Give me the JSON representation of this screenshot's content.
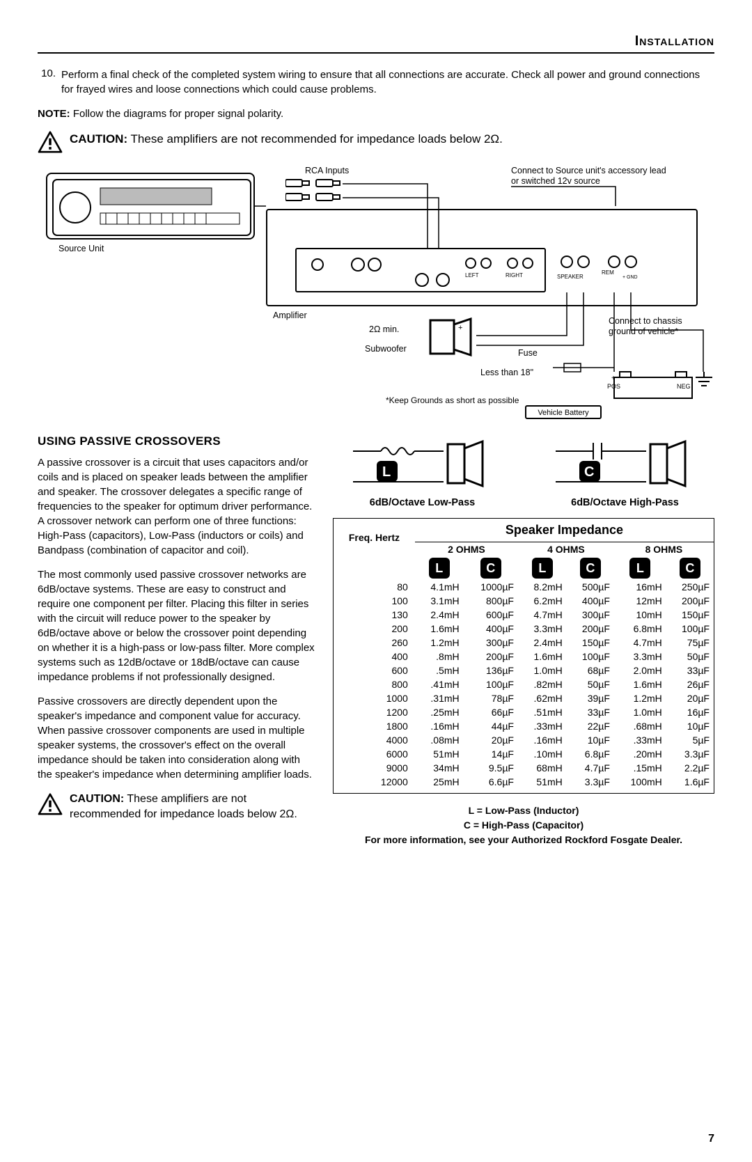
{
  "page": {
    "header": "Installation",
    "number": "7"
  },
  "step10": {
    "num": "10.",
    "text": "Perform a final check of the completed system wiring to ensure that all connections are accurate. Check all power and ground connections for frayed wires and loose connections which could cause problems."
  },
  "note": {
    "label": "NOTE:",
    "text": " Follow the diagrams for proper signal polarity."
  },
  "caution1": {
    "label": "CAUTION:",
    "text": " These amplifiers are not recommended for impedance loads below 2Ω."
  },
  "section": {
    "title": "USING PASSIVE CROSSOVERS",
    "p1": "A passive crossover is a circuit that uses capacitors and/or coils and is placed on speaker leads between the amplifier and speaker. The crossover delegates a specific range of frequencies to the speaker for optimum driver performance. A crossover network can perform one of three functions: High-Pass (capacitors), Low-Pass (inductors or coils) and Bandpass (combination of capacitor and coil).",
    "p2": "The most commonly used passive crossover networks are 6dB/octave systems. These are easy to construct and require one component per filter. Placing this filter in series with the circuit will reduce power to the speaker by 6dB/octave above or below the crossover point depending on whether it is a high-pass or low-pass filter. More complex systems such as 12dB/octave or 18dB/octave can cause impedance problems if not professionally designed.",
    "p3": "Passive crossovers are directly dependent upon the speaker's impedance and component value for accuracy. When passive crossover components are used in multiple speaker systems, the crossover's effect on the overall impedance should be taken into consideration along with the speaker's impedance when determining amplifier loads."
  },
  "caution2": {
    "label": "CAUTION:",
    "text": " These amplifiers are not recommended for impedance loads below 2Ω."
  },
  "wiring": {
    "rca": "RCA Inputs",
    "source": "Source Unit",
    "amp": "Amplifier",
    "sub_imp": "2Ω min.",
    "sub": "Subwoofer",
    "connect_src": "Connect to Source unit's accessory lead or switched 12v source",
    "connect_gnd": "Connect to chassis ground of vehicle*",
    "fuse": "Fuse",
    "less18": "Less than 18\"",
    "pos": "POS",
    "neg": "NEG",
    "keep_gnd": "*Keep Grounds as short as possible",
    "battery": "Vehicle Battery"
  },
  "filters": {
    "low": "6dB/Octave Low-Pass",
    "high": "6dB/Octave High-Pass",
    "L": "L",
    "C": "C"
  },
  "table": {
    "freq_label": "Freq. Hertz",
    "title": "Speaker Impedance",
    "ohms2": "2 OHMS",
    "ohms4": "4 OHMS",
    "ohms8": "8 OHMS",
    "L": "L",
    "C": "C",
    "rows": [
      {
        "f": "80",
        "l2": "4.1mH",
        "c2": "1000µF",
        "l4": "8.2mH",
        "c4": "500µF",
        "l8": "16mH",
        "c8": "250µF"
      },
      {
        "f": "100",
        "l2": "3.1mH",
        "c2": "800µF",
        "l4": "6.2mH",
        "c4": "400µF",
        "l8": "12mH",
        "c8": "200µF"
      },
      {
        "f": "130",
        "l2": "2.4mH",
        "c2": "600µF",
        "l4": "4.7mH",
        "c4": "300µF",
        "l8": "10mH",
        "c8": "150µF"
      },
      {
        "f": "200",
        "l2": "1.6mH",
        "c2": "400µF",
        "l4": "3.3mH",
        "c4": "200µF",
        "l8": "6.8mH",
        "c8": "100µF",
        "gap": true
      },
      {
        "f": "260",
        "l2": "1.2mH",
        "c2": "300µF",
        "l4": "2.4mH",
        "c4": "150µF",
        "l8": "4.7mH",
        "c8": "75µF"
      },
      {
        "f": "400",
        "l2": ".8mH",
        "c2": "200µF",
        "l4": "1.6mH",
        "c4": "100µF",
        "l8": "3.3mH",
        "c8": "50µF"
      },
      {
        "f": "600",
        "l2": ".5mH",
        "c2": "136µF",
        "l4": "1.0mH",
        "c4": "68µF",
        "l8": "2.0mH",
        "c8": "33µF",
        "gap": true
      },
      {
        "f": "800",
        "l2": ".41mH",
        "c2": "100µF",
        "l4": ".82mH",
        "c4": "50µF",
        "l8": "1.6mH",
        "c8": "26µF"
      },
      {
        "f": "1000",
        "l2": ".31mH",
        "c2": "78µF",
        "l4": ".62mH",
        "c4": "39µF",
        "l8": "1.2mH",
        "c8": "20µF"
      },
      {
        "f": "1200",
        "l2": ".25mH",
        "c2": "66µF",
        "l4": ".51mH",
        "c4": "33µF",
        "l8": "1.0mH",
        "c8": "16µF",
        "gap": true
      },
      {
        "f": "1800",
        "l2": ".16mH",
        "c2": "44µF",
        "l4": ".33mH",
        "c4": "22µF",
        "l8": ".68mH",
        "c8": "10µF"
      },
      {
        "f": "4000",
        "l2": ".08mH",
        "c2": "20µF",
        "l4": ".16mH",
        "c4": "10µF",
        "l8": ".33mH",
        "c8": "5µF"
      },
      {
        "f": "6000",
        "l2": "51mH",
        "c2": "14µF",
        "l4": ".10mH",
        "c4": "6.8µF",
        "l8": ".20mH",
        "c8": "3.3µF",
        "gap": true
      },
      {
        "f": "9000",
        "l2": "34mH",
        "c2": "9.5µF",
        "l4": "68mH",
        "c4": "4.7µF",
        "l8": ".15mH",
        "c8": "2.2µF"
      },
      {
        "f": "12000",
        "l2": "25mH",
        "c2": "6.6µF",
        "l4": "51mH",
        "c4": "3.3µF",
        "l8": "100mH",
        "c8": "1.6µF"
      }
    ]
  },
  "legend": {
    "l": "L = Low-Pass (Inductor)",
    "c": "C = High-Pass (Capacitor)",
    "more": "For more information, see your Authorized Rockford Fosgate Dealer."
  },
  "style": {
    "text_color": "#000000",
    "bg_color": "#ffffff",
    "rule_color": "#000000",
    "badge_bg": "#000000",
    "badge_fg": "#ffffff"
  }
}
